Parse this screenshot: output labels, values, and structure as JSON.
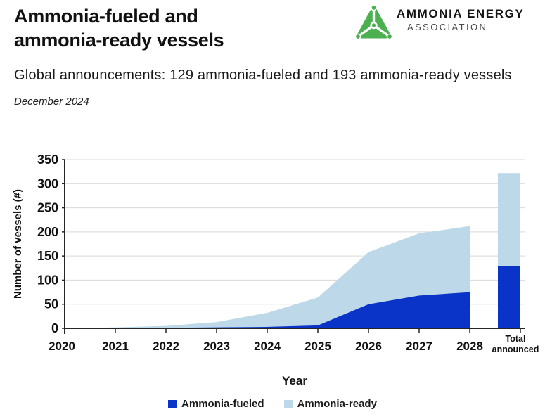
{
  "header": {
    "title_lines": [
      "Ammonia-fueled and",
      "ammonia-ready vessels"
    ],
    "subtitle": "Global announcements: 129 ammonia-fueled and 193 ammonia-ready vessels",
    "date": "December 2024"
  },
  "logo": {
    "name": "AMMONIA ENERGY",
    "subname": "ASSOCIATION",
    "icon": "ammonia-molecule-triangle-icon",
    "green": "#4caf50"
  },
  "chart_data": {
    "type": "area",
    "stacked": true,
    "title": "",
    "xlabel": "Year",
    "ylabel": "Number of vessels (#)",
    "ylim": [
      0,
      350
    ],
    "ytick_step": 50,
    "grid": true,
    "legend_position": "bottom",
    "categories": [
      "2020",
      "2021",
      "2022",
      "2023",
      "2024",
      "2025",
      "2026",
      "2027",
      "2028"
    ],
    "series": [
      {
        "name": "Ammonia-fueled",
        "color": "#0a33c8",
        "values": [
          0,
          0,
          1,
          2,
          3,
          6,
          50,
          68,
          75
        ]
      },
      {
        "name": "Ammonia-ready",
        "color": "#bdd9e9",
        "values": [
          0,
          2,
          4,
          11,
          29,
          58,
          108,
          129,
          137
        ]
      }
    ],
    "stacked_totals": [
      0,
      2,
      5,
      13,
      32,
      64,
      158,
      197,
      212
    ],
    "total_bar": {
      "label_lines": [
        "Total",
        "announced"
      ],
      "ammonia_fueled": 129,
      "ammonia_ready": 193,
      "total": 322
    },
    "axis_color": "#262626",
    "grid_color": "#d9d9d9",
    "text_color": "#111111"
  }
}
